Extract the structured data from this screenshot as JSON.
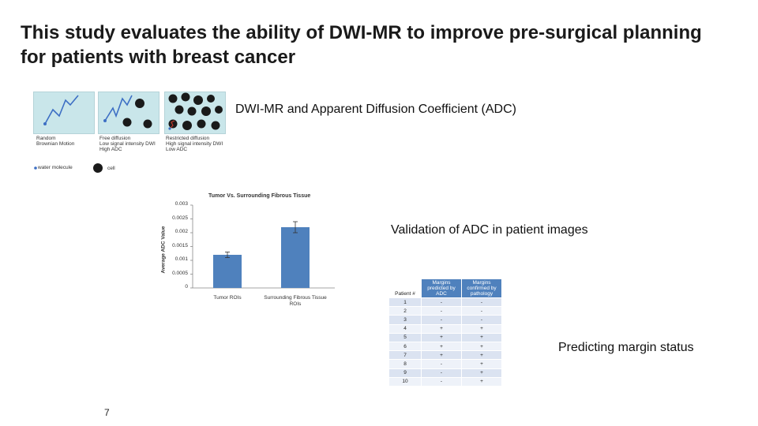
{
  "slide": {
    "title": "This study evaluates the ability of DWI-MR to improve pre-surgical planning for patients with breast cancer",
    "captions": {
      "dwi": "DWI-MR and Apparent Diffusion Coefficient (ADC)",
      "validation": "Validation of ADC in patient images",
      "predicting": "Predicting margin status"
    },
    "page_number": "7"
  },
  "diffusion_figure": {
    "panels": [
      {
        "lines": [
          "Random",
          "Brownian Motion"
        ]
      },
      {
        "lines": [
          "Free diffusion",
          "Low signal intensity DWI",
          "High ADC"
        ]
      },
      {
        "lines": [
          "Restricted diffusion",
          "High signal intensity DWI",
          "Low ADC"
        ]
      }
    ],
    "legend": {
      "molecule": "water molecule",
      "cell": "cell"
    },
    "colors": {
      "panel_bg": "#c9e6ea",
      "path": "#3d6fc4",
      "cell": "#1a1a1a"
    }
  },
  "chart_data": {
    "type": "bar",
    "title": "Tumor Vs. Surrounding Fibrous Tissue",
    "categories": [
      "Tumor ROIs",
      "Surrounding Fibrous Tissue ROIs"
    ],
    "values": [
      0.0012,
      0.0022
    ],
    "errors": [
      0.0001,
      0.0002
    ],
    "ylabel": "Average ADC Value",
    "xlabel": "",
    "ylim": [
      0,
      0.003
    ],
    "yticks": [
      "0",
      "0.0005",
      "0.001",
      "0.0015",
      "0.002",
      "0.0025",
      "0.003"
    ],
    "grid": false,
    "bar_color": "#4f81bd"
  },
  "margin_table": {
    "headers": [
      "Patient #",
      "Margins predicted by ADC",
      "Margins confirmed by pathology"
    ],
    "rows": [
      [
        "1",
        "-",
        "-"
      ],
      [
        "2",
        "-",
        "-"
      ],
      [
        "3",
        "-",
        "-"
      ],
      [
        "4",
        "+",
        "+"
      ],
      [
        "5",
        "+",
        "+"
      ],
      [
        "6",
        "+",
        "+"
      ],
      [
        "7",
        "+",
        "+"
      ],
      [
        "8",
        "-",
        "+"
      ],
      [
        "9",
        "-",
        "+"
      ],
      [
        "10",
        "-",
        "+"
      ]
    ]
  }
}
